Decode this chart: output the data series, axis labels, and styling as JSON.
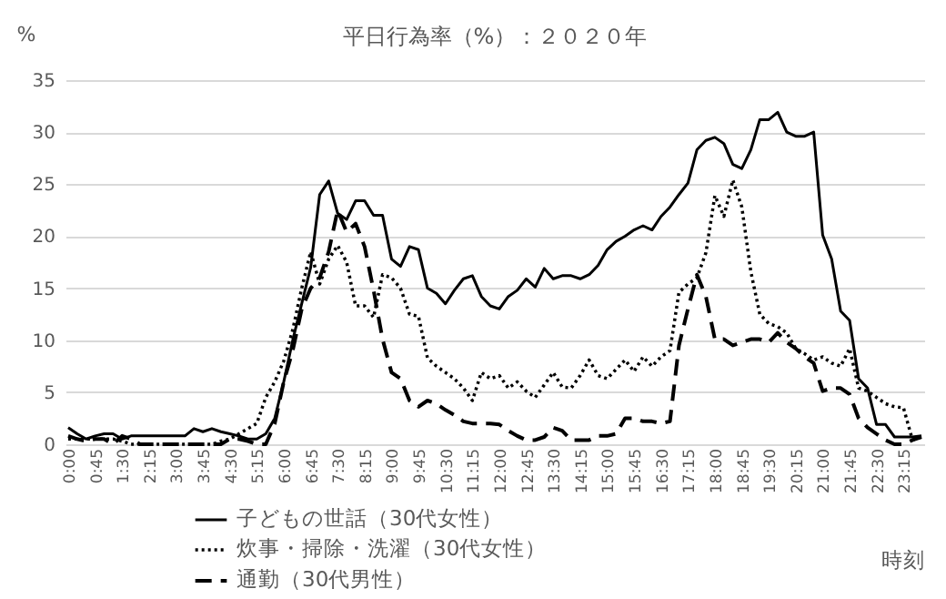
{
  "chart_data": {
    "type": "line",
    "title": "平日行為率（%）：２０２０年",
    "ylabel": "%",
    "xlabel": "時刻",
    "categories": [
      "0:00",
      null,
      null,
      "0:45",
      null,
      null,
      "1:30",
      null,
      null,
      "2:15",
      null,
      null,
      "3:00",
      null,
      null,
      "3:45",
      null,
      null,
      "4:30",
      null,
      null,
      "5:15",
      null,
      null,
      "6:00",
      null,
      null,
      "6:45",
      null,
      null,
      "7:30",
      null,
      null,
      "8:15",
      null,
      null,
      "9:00",
      null,
      null,
      "9:45",
      null,
      null,
      "10:30",
      null,
      null,
      "11:15",
      null,
      null,
      "12:00",
      null,
      null,
      "12:45",
      null,
      null,
      "13:30",
      null,
      null,
      "14:15",
      null,
      null,
      "15:00",
      null,
      null,
      "15:45",
      null,
      null,
      "16:30",
      null,
      null,
      "17:15",
      null,
      null,
      "18:00",
      null,
      null,
      "18:45",
      null,
      null,
      "19:30",
      null,
      null,
      "20:15",
      null,
      null,
      "21:00",
      null,
      null,
      "21:45",
      null,
      null,
      "22:30",
      null,
      null,
      "23:15",
      null,
      null
    ],
    "series": [
      {
        "name": "子どもの世話（30代女性）",
        "color": "#000000",
        "line_style": "solid",
        "values": [
          1.6,
          1.0,
          0.5,
          0.8,
          1.0,
          1.0,
          0.5,
          0.8,
          0.8,
          0.8,
          0.8,
          0.8,
          0.8,
          0.8,
          1.5,
          1.2,
          1.5,
          1.2,
          1.0,
          0.8,
          0.5,
          0.5,
          1.0,
          2.5,
          6,
          10,
          13.5,
          17,
          24,
          25.3,
          22.2,
          21.6,
          23.4,
          23.4,
          22,
          22,
          17.8,
          17.1,
          19,
          18.7,
          15,
          14.5,
          13.5,
          14.8,
          15.9,
          16.2,
          14.2,
          13.3,
          13,
          14.2,
          14.8,
          15.9,
          15.1,
          16.9,
          15.9,
          16.2,
          16.2,
          15.9,
          16.3,
          17.2,
          18.7,
          19.5,
          20,
          20.6,
          21,
          20.6,
          21.9,
          22.8,
          24,
          25.1,
          28.3,
          29.2,
          29.5,
          28.9,
          26.9,
          26.5,
          28.3,
          31.2,
          31.2,
          31.9,
          30,
          29.6,
          29.6,
          30,
          20.1,
          17.8,
          12.8,
          11.9,
          6.3,
          5.4,
          1.9,
          1.9,
          0.7,
          0.7,
          0.7,
          0.8
        ]
      },
      {
        "name": "炊事・掃除・洗濯（30代女性）",
        "color": "#000000",
        "line_style": "dotted",
        "values": [
          0.5,
          0.5,
          0.5,
          0.5,
          0.5,
          0.5,
          0.3,
          0,
          0,
          0,
          0,
          0,
          0,
          0,
          0,
          0,
          0,
          0.3,
          0.5,
          1,
          1.5,
          2,
          4.5,
          6,
          8,
          11,
          15,
          18.5,
          15.4,
          17.8,
          19.1,
          17.5,
          13.3,
          13.3,
          12.2,
          16.3,
          16,
          15,
          12.5,
          12.3,
          8.3,
          7.5,
          6.9,
          6.3,
          5.4,
          4.2,
          6.9,
          6.3,
          6.6,
          5.4,
          6,
          5.1,
          4.5,
          5.7,
          6.9,
          5.5,
          5.4,
          6.6,
          8.1,
          6.6,
          6.3,
          7.2,
          8.1,
          7,
          8.4,
          7.5,
          8.4,
          9,
          14.6,
          15.4,
          16,
          18.4,
          23.9,
          21.9,
          25.4,
          22.8,
          16.6,
          12.5,
          11.6,
          11.3,
          10.7,
          9.2,
          8.7,
          8.1,
          8.4,
          7.8,
          7.5,
          9.2,
          5.4,
          5.1,
          4.5,
          3.9,
          3.6,
          3.5,
          0.4,
          0.7
        ]
      },
      {
        "name": "通勤（30代男性）",
        "color": "#000000",
        "line_style": "dashed",
        "values": [
          0.8,
          0.5,
          0.3,
          0.5,
          0.5,
          0,
          0.8,
          0.5,
          0,
          0,
          0,
          0,
          0,
          0,
          0,
          0,
          0,
          0,
          0.5,
          0.5,
          0.3,
          0,
          0,
          2,
          6,
          9,
          13,
          15,
          16,
          18.5,
          22.5,
          20.4,
          21.2,
          19,
          14.8,
          10.1,
          6.9,
          6.3,
          4.2,
          3.6,
          4.2,
          3.9,
          3.3,
          2.8,
          2.2,
          2,
          2,
          2,
          1.9,
          1.3,
          0.8,
          0.4,
          0.4,
          0.7,
          1.6,
          1.3,
          0.4,
          0.4,
          0.4,
          0.8,
          0.8,
          1,
          2.5,
          2.5,
          2.2,
          2.2,
          2,
          2.2,
          9.5,
          13,
          16.3,
          14.2,
          10.1,
          10.1,
          9.5,
          9.8,
          10.1,
          10.1,
          9.8,
          10.7,
          9.8,
          9.2,
          8.4,
          7.8,
          5.1,
          5.4,
          5.4,
          4.8,
          2.5,
          1.6,
          1,
          0.4,
          0,
          0,
          0.4,
          0.7
        ]
      }
    ],
    "ylim": [
      0,
      35
    ],
    "yticks": [
      0,
      5,
      10,
      15,
      20,
      25,
      30,
      35
    ],
    "grid": "y",
    "legend": "bottom",
    "marker": "none"
  }
}
